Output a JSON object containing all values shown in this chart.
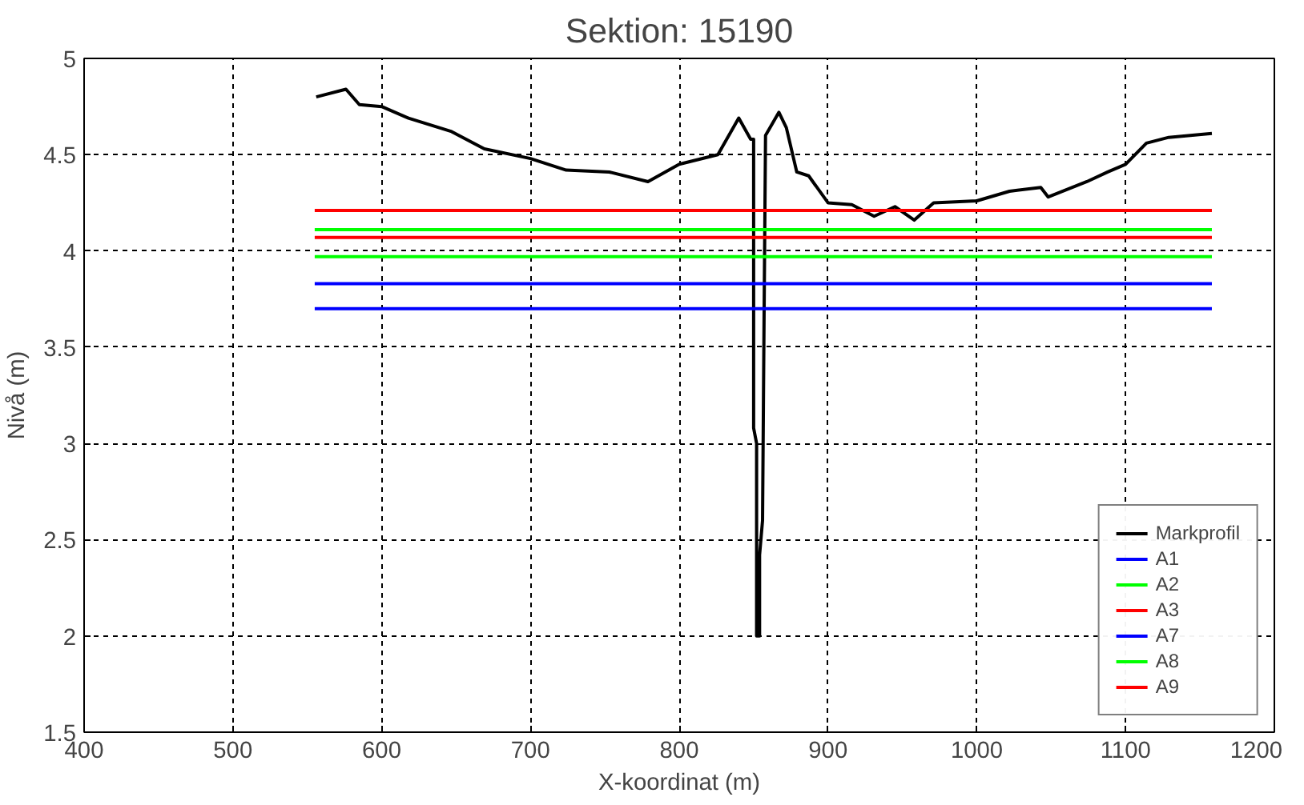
{
  "chart_data": {
    "type": "line",
    "title": "Sektion: 15190",
    "xlabel": "X-koordinat (m)",
    "ylabel": "Nivå (m)",
    "xlim": [
      400,
      1200
    ],
    "ylim": [
      1.5,
      5
    ],
    "xticks": [
      400,
      500,
      600,
      700,
      800,
      900,
      1000,
      1100,
      1200
    ],
    "yticks": [
      1.5,
      2,
      2.5,
      3,
      3.5,
      4,
      4.5,
      5
    ],
    "grid": true,
    "legend": "bottom right",
    "line_style": "solid",
    "series": [
      {
        "name": "Markprofil",
        "color": "#000000",
        "x": [
          556,
          576,
          585,
          600,
          618,
          647,
          669,
          700,
          724,
          753,
          779,
          800,
          826,
          840,
          848,
          850,
          850,
          852,
          852,
          854,
          854,
          856,
          857,
          858,
          867,
          872,
          879,
          887,
          900,
          916,
          931,
          945,
          958,
          971,
          1000,
          1022,
          1043,
          1048,
          1074,
          1088,
          1100,
          1114,
          1129,
          1158
        ],
        "values": [
          4.8,
          4.84,
          4.76,
          4.75,
          4.69,
          4.62,
          4.53,
          4.48,
          4.42,
          4.41,
          4.36,
          4.45,
          4.5,
          4.69,
          4.58,
          4.58,
          3.08,
          3.0,
          2.0,
          2.0,
          2.42,
          2.6,
          3.63,
          4.6,
          4.72,
          4.64,
          4.41,
          4.39,
          4.25,
          4.24,
          4.18,
          4.23,
          4.16,
          4.25,
          4.26,
          4.31,
          4.33,
          4.28,
          4.36,
          4.41,
          4.45,
          4.56,
          4.59,
          4.61
        ]
      },
      {
        "name": "A1",
        "color": "#0000ff",
        "x": [
          555,
          1158
        ],
        "values": [
          3.83,
          3.83
        ]
      },
      {
        "name": "A2",
        "color": "#00ff00",
        "x": [
          555,
          1158
        ],
        "values": [
          4.11,
          4.11
        ]
      },
      {
        "name": "A3",
        "color": "#ff0000",
        "x": [
          555,
          1158
        ],
        "values": [
          4.07,
          4.07
        ]
      },
      {
        "name": "A7",
        "color": "#0000ff",
        "x": [
          555,
          1158
        ],
        "values": [
          3.7,
          3.7
        ]
      },
      {
        "name": "A8",
        "color": "#00ff00",
        "x": [
          555,
          1158
        ],
        "values": [
          3.97,
          3.97
        ]
      },
      {
        "name": "A9",
        "color": "#ff0000",
        "x": [
          555,
          1158
        ],
        "values": [
          4.21,
          4.21
        ]
      }
    ]
  }
}
